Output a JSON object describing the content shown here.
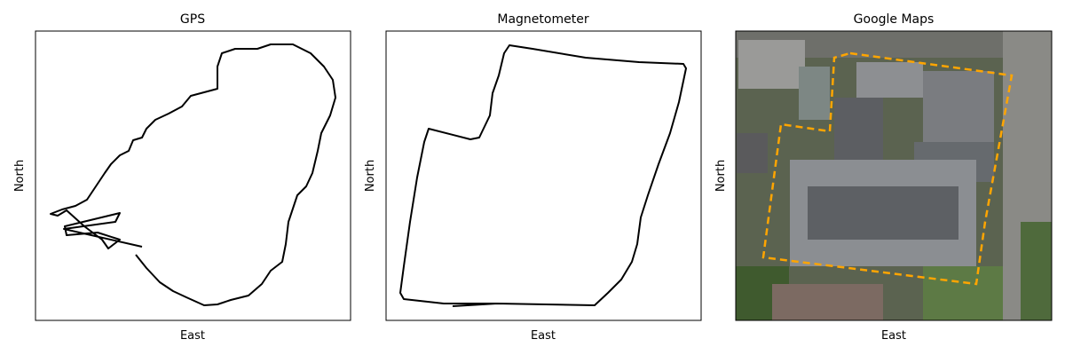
{
  "panels": [
    {
      "title": "GPS",
      "xlabel": "East",
      "ylabel": "North"
    },
    {
      "title": "Magnetometer",
      "xlabel": "East",
      "ylabel": "North"
    },
    {
      "title": "Google Maps",
      "xlabel": "East",
      "ylabel": "North"
    }
  ]
}
